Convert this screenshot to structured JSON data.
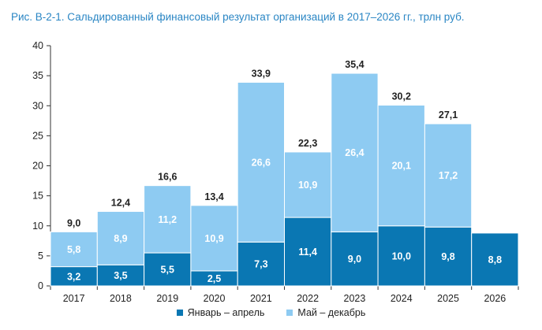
{
  "title": "Рис. В-2-1. Сальдированный финансовый результат организаций в 2017–2026 гг., трлн руб.",
  "chart_data": {
    "type": "bar",
    "stacked": true,
    "categories": [
      "2017",
      "2018",
      "2019",
      "2020",
      "2021",
      "2022",
      "2023",
      "2024",
      "2025",
      "2026"
    ],
    "series": [
      {
        "name": "Январь – апрель",
        "color": "#0a77b3",
        "values": [
          3.2,
          3.5,
          5.5,
          2.5,
          7.3,
          11.4,
          9.0,
          10.0,
          9.8,
          8.8
        ],
        "labels": [
          "3,2",
          "3,5",
          "5,5",
          "2,5",
          "7,3",
          "11,4",
          "9,0",
          "10,0",
          "9,8",
          "8,8"
        ]
      },
      {
        "name": "Май – декабрь",
        "color": "#8ecbf2",
        "values": [
          5.8,
          8.9,
          11.2,
          10.9,
          26.6,
          10.9,
          26.4,
          20.1,
          17.2,
          null
        ],
        "labels": [
          "5,8",
          "8,9",
          "11,2",
          "10,9",
          "26,6",
          "10,9",
          "26,4",
          "20,1",
          "17,2",
          ""
        ]
      }
    ],
    "totals": [
      9.0,
      12.4,
      16.6,
      13.4,
      33.9,
      22.3,
      35.4,
      30.2,
      27.1,
      null
    ],
    "total_labels": [
      "9,0",
      "12,4",
      "16,6",
      "13,4",
      "33,9",
      "22,3",
      "35,4",
      "30,2",
      "27,1",
      ""
    ],
    "ylim": [
      0,
      40
    ],
    "yticks": [
      0,
      5,
      10,
      15,
      20,
      25,
      30,
      35,
      40
    ],
    "legend": "bottom",
    "grid": false
  }
}
